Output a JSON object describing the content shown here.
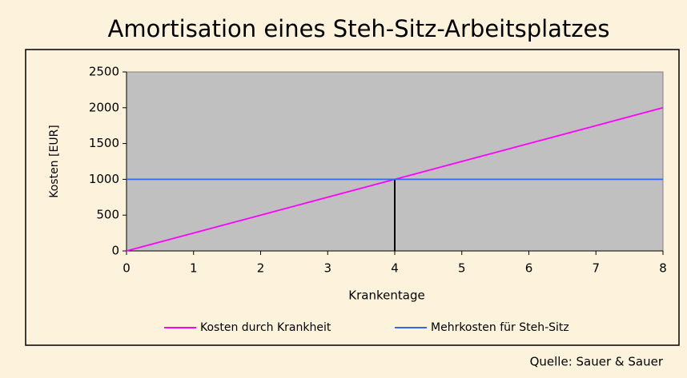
{
  "chart_data": {
    "type": "line",
    "title": "Amortisation eines Steh-Sitz-Arbeitsplatzes",
    "x_label": "Krankentage",
    "y_label": "Kosten [EUR]",
    "source": "Quelle: Sauer & Sauer",
    "x": [
      0,
      1,
      2,
      3,
      4,
      5,
      6,
      7,
      8
    ],
    "series": [
      {
        "name": "Kosten durch Krankheit",
        "color": "#ff00ff",
        "values": [
          0,
          250,
          500,
          750,
          1000,
          1250,
          1500,
          1750,
          2000
        ]
      },
      {
        "name": "Mehrkosten für Steh-Sitz",
        "color": "#3366ff",
        "values": [
          1000,
          1000,
          1000,
          1000,
          1000,
          1000,
          1000,
          1000,
          1000
        ]
      }
    ],
    "xlim": [
      0,
      8
    ],
    "xticks": [
      0,
      1,
      2,
      3,
      4,
      5,
      6,
      7,
      8
    ],
    "ylim": [
      0,
      2500
    ],
    "yticks": [
      0,
      500,
      1000,
      1500,
      2000,
      2500
    ],
    "plot_background": "#c0c0c0"
  }
}
